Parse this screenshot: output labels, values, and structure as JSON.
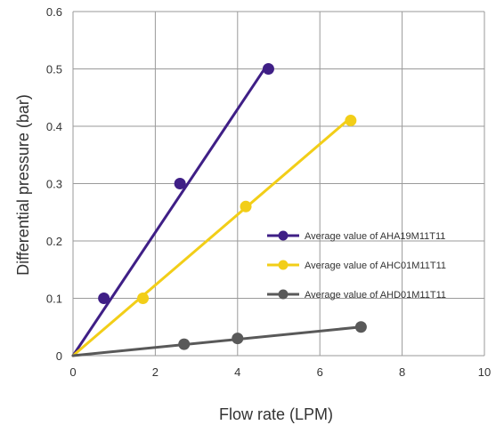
{
  "chart_data": {
    "type": "line",
    "title": "",
    "xlabel": "Flow rate (LPM)",
    "ylabel": "Differential pressure (bar)",
    "xlim": [
      0,
      10
    ],
    "ylim": [
      0,
      0.6
    ],
    "xticks": [
      0,
      2,
      4,
      6,
      8,
      10
    ],
    "yticks": [
      0,
      0.1,
      0.2,
      0.3,
      0.4,
      0.5,
      0.6
    ],
    "xtick_labels": [
      "0",
      "2",
      "4",
      "6",
      "8",
      "10"
    ],
    "ytick_labels": [
      "0",
      "0.1",
      "0.2",
      "0.3",
      "0.4",
      "0.5",
      "0.6"
    ],
    "grid": true,
    "legend_position": "right",
    "series": [
      {
        "name": "Average value of AHA19M11T11",
        "color": "#3f1f86",
        "points": [
          {
            "x": 0.75,
            "y": 0.1
          },
          {
            "x": 2.6,
            "y": 0.3
          },
          {
            "x": 4.75,
            "y": 0.5
          }
        ],
        "trend_line": [
          {
            "x": 0,
            "y": 0
          },
          {
            "x": 4.7,
            "y": 0.505
          }
        ]
      },
      {
        "name": "Average value of AHC01M11T11",
        "color": "#f2ce18",
        "points": [
          {
            "x": 1.7,
            "y": 0.1
          },
          {
            "x": 4.2,
            "y": 0.26
          },
          {
            "x": 6.75,
            "y": 0.41
          }
        ],
        "trend_line": [
          {
            "x": 0,
            "y": 0
          },
          {
            "x": 6.75,
            "y": 0.415
          }
        ]
      },
      {
        "name": "Average value of AHD01M11T11",
        "color": "#595959",
        "points": [
          {
            "x": 2.7,
            "y": 0.02
          },
          {
            "x": 4.0,
            "y": 0.03
          },
          {
            "x": 7.0,
            "y": 0.05
          }
        ],
        "trend_line": [
          {
            "x": 0,
            "y": 0
          },
          {
            "x": 7.0,
            "y": 0.05
          }
        ]
      }
    ]
  }
}
